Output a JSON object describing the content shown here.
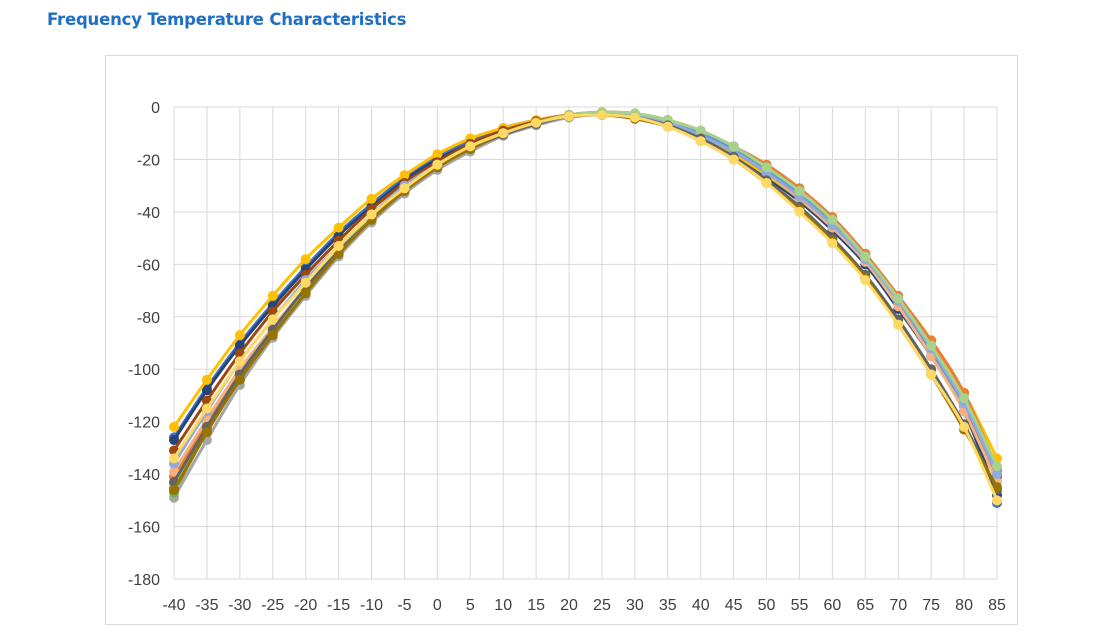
{
  "page": {
    "title": "Frequency Temperature Characteristics"
  },
  "chart_data": {
    "type": "line",
    "title": "",
    "xlabel": "",
    "ylabel": "",
    "x": [
      -40,
      -35,
      -30,
      -25,
      -20,
      -15,
      -10,
      -5,
      0,
      5,
      10,
      15,
      20,
      25,
      30,
      35,
      40,
      45,
      50,
      55,
      60,
      65,
      70,
      75,
      80,
      85
    ],
    "x_tick_labels": [
      "-40",
      "-35",
      "-30",
      "-25",
      "-20",
      "-15",
      "-10",
      "-5",
      "0",
      "5",
      "10",
      "15",
      "20",
      "25",
      "30",
      "35",
      "40",
      "45",
      "50",
      "55",
      "60",
      "65",
      "70",
      "75",
      "80",
      "85"
    ],
    "y_tick_labels": [
      "0",
      "-20",
      "-40",
      "-60",
      "-80",
      "-100",
      "-120",
      "-140",
      "-160",
      "-180"
    ],
    "ylim": [
      -180,
      0
    ],
    "grid": true,
    "legend": "none",
    "series": [
      {
        "color": "#4472c4",
        "values": [
          -126,
          -107,
          -90,
          -75,
          -61,
          -48,
          -37,
          -27,
          -19,
          -13,
          -8,
          -5,
          -3,
          -2.5,
          -3.5,
          -6,
          -10,
          -16,
          -24,
          -33,
          -44,
          -56,
          -74,
          -91,
          -112,
          -151
        ]
      },
      {
        "color": "#264478",
        "values": [
          -127,
          -108,
          -91,
          -76,
          -62,
          -49,
          -38,
          -28,
          -20,
          -14,
          -9,
          -5.5,
          -3.5,
          -3,
          -4,
          -7,
          -12,
          -19,
          -27,
          -36,
          -47,
          -60,
          -77,
          -95,
          -116,
          -148
        ]
      },
      {
        "color": "#ffc000",
        "values": [
          -122,
          -104,
          -87,
          -72,
          -58,
          -46,
          -35,
          -26,
          -18,
          -12,
          -8,
          -5,
          -3,
          -3,
          -4,
          -7,
          -12,
          -18,
          -26,
          -35,
          -46,
          -58,
          -73,
          -89,
          -109,
          -134
        ]
      },
      {
        "color": "#a5a5a5",
        "values": [
          -149,
          -127,
          -106,
          -88,
          -72,
          -57,
          -44,
          -33,
          -24,
          -17,
          -11,
          -7,
          -4,
          -3,
          -4,
          -7,
          -11,
          -17,
          -25,
          -35,
          -46,
          -59,
          -75,
          -93,
          -114,
          -140
        ]
      },
      {
        "color": "#ed7d31",
        "values": [
          -141,
          -120,
          -101,
          -85,
          -70,
          -56,
          -43,
          -32,
          -23,
          -16,
          -10,
          -6,
          -3,
          -2,
          -2.5,
          -5,
          -9,
          -15,
          -22,
          -31,
          -42,
          -56,
          -72,
          -89,
          -109,
          -138
        ]
      },
      {
        "color": "#70ad47",
        "values": [
          -147,
          -124,
          -104,
          -86,
          -71,
          -56,
          -43,
          -32,
          -23,
          -15.5,
          -10,
          -6,
          -3,
          -2,
          -2.5,
          -5,
          -9.5,
          -15,
          -23,
          -32,
          -44,
          -57,
          -73,
          -91,
          -112,
          -140
        ]
      },
      {
        "color": "#5b9bd5",
        "values": [
          -145,
          -123,
          -103,
          -86,
          -70,
          -56,
          -43,
          -32,
          -23,
          -16,
          -10.5,
          -6.5,
          -3.5,
          -2.5,
          -3,
          -5.5,
          -10,
          -16,
          -24,
          -33,
          -45,
          -58,
          -75,
          -93,
          -114,
          -139
        ]
      },
      {
        "color": "#9e480e",
        "values": [
          -131,
          -112,
          -94,
          -78,
          -64,
          -51,
          -39,
          -29,
          -21,
          -14,
          -9,
          -5.5,
          -3,
          -2.5,
          -3,
          -6,
          -11,
          -17,
          -25,
          -34,
          -45,
          -58,
          -74,
          -92,
          -113,
          -141
        ]
      },
      {
        "color": "#f4b183",
        "values": [
          -139,
          -119,
          -100,
          -84,
          -69,
          -55,
          -43,
          -32,
          -23,
          -16,
          -10,
          -6,
          -3,
          -2.5,
          -3.5,
          -6,
          -11,
          -17,
          -25,
          -35,
          -46,
          -59,
          -76,
          -95,
          -116,
          -143
        ]
      },
      {
        "color": "#8faadc",
        "values": [
          -136,
          -116,
          -97,
          -81,
          -66,
          -53,
          -41,
          -30,
          -22,
          -15,
          -10,
          -6,
          -3.5,
          -3,
          -3.5,
          -6,
          -11,
          -17,
          -25,
          -34,
          -45,
          -58,
          -74,
          -92,
          -113,
          -140
        ]
      },
      {
        "color": "#a9d18e",
        "values": [
          -144,
          -122,
          -102,
          -85,
          -70,
          -55,
          -42,
          -31,
          -22,
          -15,
          -10,
          -6,
          -3,
          -2,
          -2.5,
          -5,
          -9,
          -15,
          -23,
          -32,
          -43,
          -57,
          -73,
          -91,
          -111,
          -137
        ]
      },
      {
        "color": "#636363",
        "values": [
          -143,
          -122,
          -102,
          -85,
          -69,
          -55,
          -43,
          -32,
          -23,
          -16,
          -10.5,
          -6.5,
          -3.5,
          -3,
          -4,
          -7,
          -12,
          -19,
          -28,
          -38,
          -50,
          -64,
          -81,
          -100,
          -121,
          -146
        ]
      },
      {
        "color": "#997300",
        "values": [
          -146,
          -124,
          -104,
          -87,
          -71,
          -56,
          -43,
          -32,
          -23,
          -16,
          -10,
          -6,
          -3.5,
          -3,
          -4.5,
          -7.5,
          -13,
          -20,
          -29,
          -39,
          -51,
          -65,
          -83,
          -102,
          -123,
          -145
        ]
      },
      {
        "color": "#ffd966",
        "values": [
          -134,
          -115,
          -97,
          -81,
          -67,
          -53,
          -41,
          -31,
          -22,
          -15,
          -10,
          -6,
          -3.5,
          -3,
          -4,
          -7.5,
          -13,
          -20,
          -29,
          -40,
          -52,
          -66,
          -83,
          -102,
          -122,
          -150
        ]
      }
    ]
  }
}
